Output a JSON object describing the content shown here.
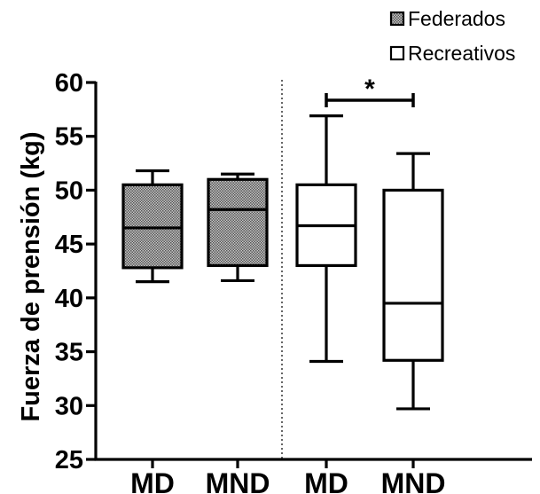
{
  "chart_data": {
    "type": "boxplot",
    "ylabel": "Fuerza de prensión (kg)",
    "ylim": [
      25,
      60
    ],
    "yticks": [
      25,
      30,
      35,
      40,
      45,
      50,
      55,
      60
    ],
    "categories": [
      "MD",
      "MND",
      "MD",
      "MND"
    ],
    "legend": {
      "placement": "top-right",
      "entries": [
        {
          "label": "Federados",
          "fill": "stippled-gray"
        },
        {
          "label": "Recreativos",
          "fill": "white"
        }
      ]
    },
    "series": [
      {
        "name": "Federados",
        "boxes": [
          {
            "category": "MD",
            "min": 41.5,
            "q1": 42.8,
            "median": 46.5,
            "q3": 50.5,
            "max": 51.8
          },
          {
            "category": "MND",
            "min": 41.6,
            "q1": 43.0,
            "median": 48.2,
            "q3": 51.0,
            "max": 51.5
          }
        ]
      },
      {
        "name": "Recreativos",
        "boxes": [
          {
            "category": "MD",
            "min": 34.1,
            "q1": 43.0,
            "median": 46.7,
            "q3": 50.5,
            "max": 56.9
          },
          {
            "category": "MND",
            "min": 29.7,
            "q1": 34.2,
            "median": 39.5,
            "q3": 50.0,
            "max": 53.4
          }
        ]
      }
    ],
    "significance": {
      "between": [
        "MD",
        "MND"
      ],
      "group": "Recreativos",
      "marker": "*"
    },
    "colors": {
      "stipple_dark": "#555555",
      "stipple_light": "#c8c8c8",
      "line": "#000000"
    }
  }
}
